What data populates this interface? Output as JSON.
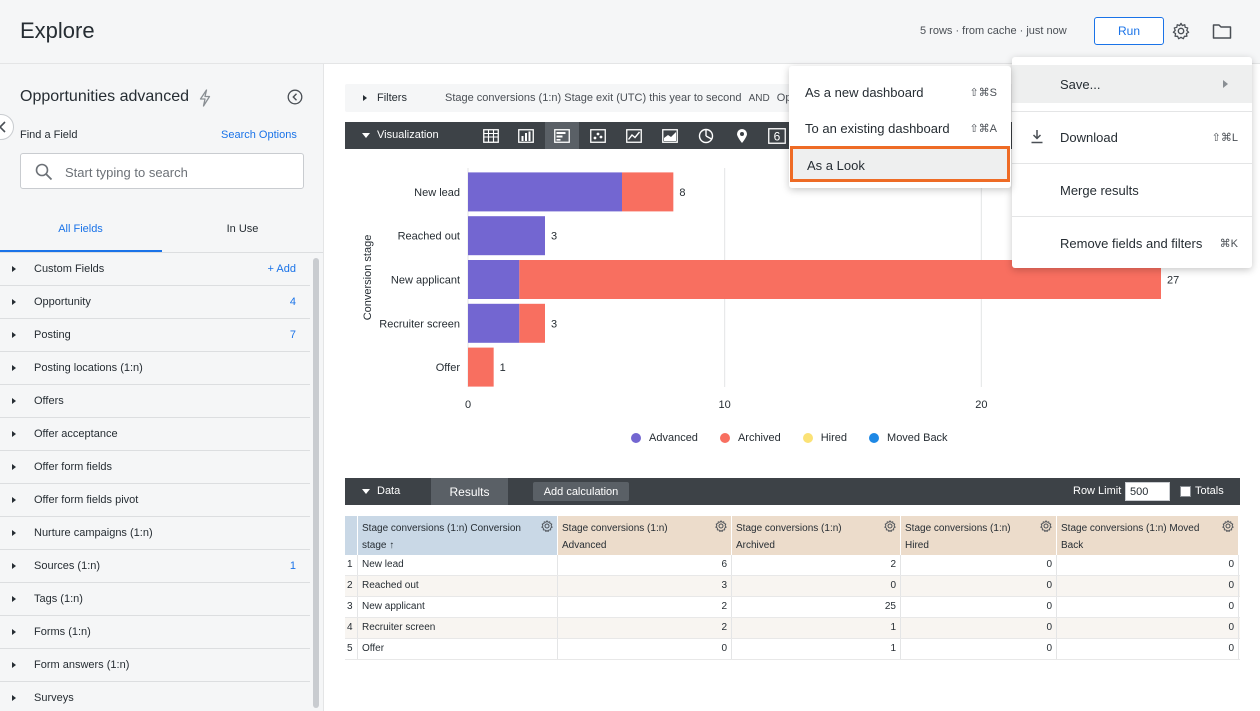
{
  "header": {
    "title": "Explore",
    "status": "5 rows · from cache · just now",
    "run_label": "Run",
    "settings_icon": "gear-icon",
    "folder_icon": "folder-icon"
  },
  "sidebar": {
    "model_title": "Opportunities advanced",
    "find_label": "Find a Field",
    "search_options": "Search Options",
    "search_placeholder": "Start typing to search",
    "tabs": [
      {
        "label": "All Fields",
        "active": true
      },
      {
        "label": "In Use",
        "active": false
      }
    ],
    "add_label": "+ Add",
    "fields": [
      {
        "label": "Custom Fields",
        "count": ""
      },
      {
        "label": "Opportunity",
        "count": "4"
      },
      {
        "label": "Posting",
        "count": "7"
      },
      {
        "label": "Posting locations (1:n)",
        "count": ""
      },
      {
        "label": "Offers",
        "count": ""
      },
      {
        "label": "Offer acceptance",
        "count": ""
      },
      {
        "label": "Offer form fields",
        "count": ""
      },
      {
        "label": "Offer form fields pivot",
        "count": ""
      },
      {
        "label": "Nurture campaigns (1:n)",
        "count": ""
      },
      {
        "label": "Sources (1:n)",
        "count": "1"
      },
      {
        "label": "Tags (1:n)",
        "count": ""
      },
      {
        "label": "Forms (1:n)",
        "count": ""
      },
      {
        "label": "Form answers (1:n)",
        "count": ""
      },
      {
        "label": "Surveys",
        "count": ""
      }
    ]
  },
  "filters": {
    "label": "Filters",
    "text": "Stage conversions (1:n) Stage exit (UTC) this year to second",
    "and_label": "AND",
    "trailing": "Op"
  },
  "visualization": {
    "label": "Visualization",
    "type_icons": [
      "table-icon",
      "column-chart-icon",
      "bar-chart-icon",
      "scatter-icon",
      "line-chart-icon",
      "area-chart-icon",
      "pie-chart-icon",
      "map-pin-icon",
      "single-value-icon"
    ],
    "single_value_glyph": "6"
  },
  "chart_data": {
    "type": "bar",
    "orientation": "horizontal",
    "stacked": true,
    "categories": [
      "New lead",
      "Reached out",
      "New applicant",
      "Recruiter screen",
      "Offer"
    ],
    "series": [
      {
        "name": "Advanced",
        "values": [
          6,
          3,
          2,
          2,
          0
        ],
        "color": "#7366d1"
      },
      {
        "name": "Archived",
        "values": [
          2,
          0,
          25,
          1,
          1
        ],
        "color": "#f86f60"
      },
      {
        "name": "Hired",
        "values": [
          0,
          0,
          0,
          0,
          0
        ],
        "color": "#fbe276"
      },
      {
        "name": "Moved Back",
        "values": [
          0,
          0,
          0,
          0,
          0
        ],
        "color": "#1e88e5"
      }
    ],
    "totals": [
      "8",
      "3",
      "27",
      "3",
      "1"
    ],
    "ylabel": "Conversion stage",
    "xlim": [
      0,
      27
    ],
    "xticks": [
      0,
      10,
      20
    ],
    "tick_labels": [
      "0",
      "10",
      "20"
    ],
    "grid": true,
    "legend": "bottom-center"
  },
  "data_section": {
    "label": "Data",
    "results_tab": "Results",
    "add_calc": "Add calculation",
    "row_limit_label": "Row Limit",
    "row_limit_value": "500",
    "totals_label": "Totals"
  },
  "table": {
    "columns": [
      {
        "label": "Stage conversions (1:n) Conversion stage ↑",
        "color": "#c9d8e6"
      },
      {
        "label": "Stage conversions (1:n) Advanced",
        "color": "#ecdccb"
      },
      {
        "label": "Stage conversions (1:n) Archived",
        "color": "#ecdccb"
      },
      {
        "label": "Stage conversions (1:n) Hired",
        "color": "#ecdccb"
      },
      {
        "label": "Stage conversions (1:n) Moved Back",
        "color": "#ecdccb"
      }
    ],
    "rows": [
      {
        "idx": "1",
        "stage": "New lead",
        "advanced": "6",
        "archived": "2",
        "hired": "0",
        "moved_back": "0"
      },
      {
        "idx": "2",
        "stage": "Reached out",
        "advanced": "3",
        "archived": "0",
        "hired": "0",
        "moved_back": "0"
      },
      {
        "idx": "3",
        "stage": "New applicant",
        "advanced": "2",
        "archived": "25",
        "hired": "0",
        "moved_back": "0"
      },
      {
        "idx": "4",
        "stage": "Recruiter screen",
        "advanced": "2",
        "archived": "1",
        "hired": "0",
        "moved_back": "0"
      },
      {
        "idx": "5",
        "stage": "Offer",
        "advanced": "0",
        "archived": "1",
        "hired": "0",
        "moved_back": "0"
      }
    ]
  },
  "gear_menu": {
    "items": [
      {
        "label": "Save...",
        "shortcut": ""
      },
      {
        "label": "Download",
        "shortcut": "⇧⌘L"
      },
      {
        "label": "Merge results",
        "shortcut": ""
      },
      {
        "label": "Remove fields and filters",
        "shortcut": "⌘K"
      }
    ]
  },
  "save_submenu": {
    "items": [
      {
        "label": "As a new dashboard",
        "shortcut": "⇧⌘S"
      },
      {
        "label": "To an existing dashboard",
        "shortcut": "⇧⌘A"
      },
      {
        "label": "As a Look",
        "shortcut": ""
      }
    ],
    "highlight_color": "#ee6b25"
  }
}
